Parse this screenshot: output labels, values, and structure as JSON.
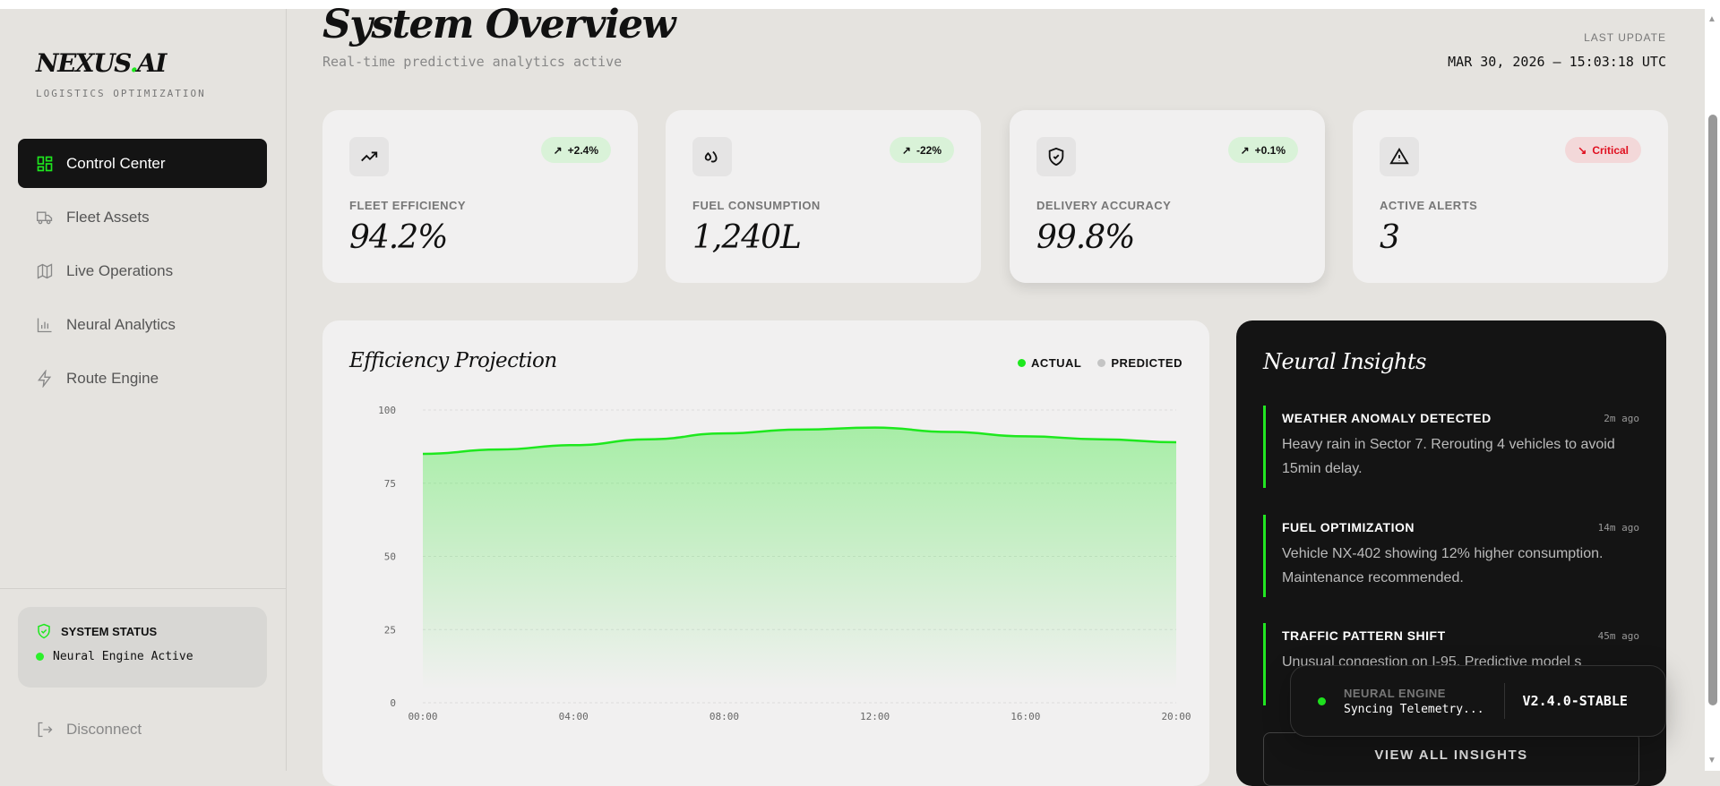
{
  "brand": {
    "name_a": "NEXUS",
    "name_dot": ".",
    "name_b": "AI",
    "subtitle": "LOGISTICS OPTIMIZATION"
  },
  "nav": [
    {
      "label": "Control Center",
      "icon": "grid-icon",
      "active": true
    },
    {
      "label": "Fleet Assets",
      "icon": "truck-icon"
    },
    {
      "label": "Live Operations",
      "icon": "map-icon"
    },
    {
      "label": "Neural Analytics",
      "icon": "bar-chart-icon"
    },
    {
      "label": "Route Engine",
      "icon": "lightning-icon"
    }
  ],
  "system_status": {
    "title": "SYSTEM STATUS",
    "text": "Neural Engine Active"
  },
  "disconnect": "Disconnect",
  "header": {
    "title": "System Overview",
    "subtitle": "Real-time predictive analytics active",
    "last_update_label": "LAST UPDATE",
    "last_update_value": "MAR 30, 2026 — 15:03:18 UTC"
  },
  "cards": [
    {
      "label": "FLEET EFFICIENCY",
      "value": "94.2%",
      "badge": "+2.4%",
      "badge_arrow": "↗",
      "icon": "trending-up-icon",
      "status": "positive"
    },
    {
      "label": "FUEL CONSUMPTION",
      "value": "1,240L",
      "badge": "-22%",
      "badge_arrow": "↗",
      "icon": "droplets-icon",
      "status": "positive"
    },
    {
      "label": "DELIVERY ACCURACY",
      "value": "99.8%",
      "badge": "+0.1%",
      "badge_arrow": "↗",
      "icon": "shield-check-icon",
      "status": "positive"
    },
    {
      "label": "ACTIVE ALERTS",
      "value": "3",
      "badge": "Critical",
      "badge_arrow": "↘",
      "icon": "alert-triangle-icon",
      "status": "critical"
    }
  ],
  "colors": {
    "accent": "#1ee81e",
    "critical": "#e01020",
    "dark": "#141414"
  },
  "chart_data": {
    "type": "area",
    "title": "Efficiency Projection",
    "legend": [
      "ACTUAL",
      "PREDICTED"
    ],
    "legend_colors": [
      "#1ee81e",
      "#c4c4c4"
    ],
    "legend_placement": "top-right",
    "x": [
      "00:00",
      "02:00",
      "04:00",
      "06:00",
      "08:00",
      "10:00",
      "12:00",
      "14:00",
      "16:00",
      "18:00",
      "20:00"
    ],
    "x_ticks": [
      "00:00",
      "04:00",
      "08:00",
      "12:00",
      "16:00",
      "20:00"
    ],
    "series": [
      {
        "name": "ACTUAL",
        "values": [
          85,
          86.5,
          88,
          90,
          92,
          93.3,
          94,
          92.5,
          91,
          90,
          89
        ]
      }
    ],
    "y_ticks": [
      "0",
      "25",
      "50",
      "75",
      "100"
    ],
    "ylim": [
      0,
      100
    ],
    "grid": true
  },
  "insights": {
    "title": "Neural Insights",
    "items": [
      {
        "title": "WEATHER ANOMALY DETECTED",
        "time": "2m ago",
        "body": "Heavy rain in Sector 7. Rerouting 4 vehicles to avoid 15min delay."
      },
      {
        "title": "FUEL OPTIMIZATION",
        "time": "14m ago",
        "body": "Vehicle NX-402 showing 12% higher consumption. Maintenance recommended."
      },
      {
        "title": "TRAFFIC PATTERN SHIFT",
        "time": "45m ago",
        "body": "Unusual congestion on I-95. Predictive model s"
      }
    ],
    "view_all": "VIEW ALL INSIGHTS"
  },
  "toast": {
    "label": "NEURAL ENGINE",
    "status": "Syncing Telemetry...",
    "version": "V2.4.0-STABLE"
  }
}
